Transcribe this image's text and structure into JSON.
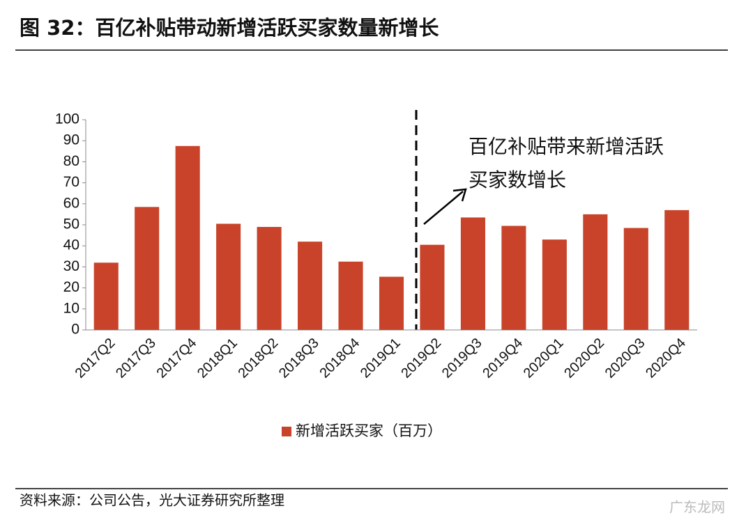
{
  "chart_data": {
    "type": "bar",
    "title": "图 32：百亿补贴带动新增活跃买家数量新增长",
    "categories": [
      "2017Q2",
      "2017Q3",
      "2017Q4",
      "2018Q1",
      "2018Q2",
      "2018Q3",
      "2018Q4",
      "2019Q1",
      "2019Q2",
      "2019Q3",
      "2019Q4",
      "2020Q1",
      "2020Q2",
      "2020Q3",
      "2020Q4"
    ],
    "series": [
      {
        "name": "新增活跃买家（百万）",
        "color": "#c8432a",
        "values": [
          32,
          58.5,
          87.5,
          50.5,
          49,
          42,
          32.5,
          25.3,
          40.5,
          53.5,
          49.5,
          43,
          55,
          48.5,
          57
        ]
      }
    ],
    "ylim": [
      0,
      100
    ],
    "yticks": [
      0,
      10,
      20,
      30,
      40,
      50,
      60,
      70,
      80,
      90,
      100
    ],
    "annotation": [
      "百亿补贴带来新增活跃",
      "买家数增长"
    ],
    "source": "资料来源：公司公告，光大证券研究所整理",
    "watermark": "广东龙网"
  }
}
